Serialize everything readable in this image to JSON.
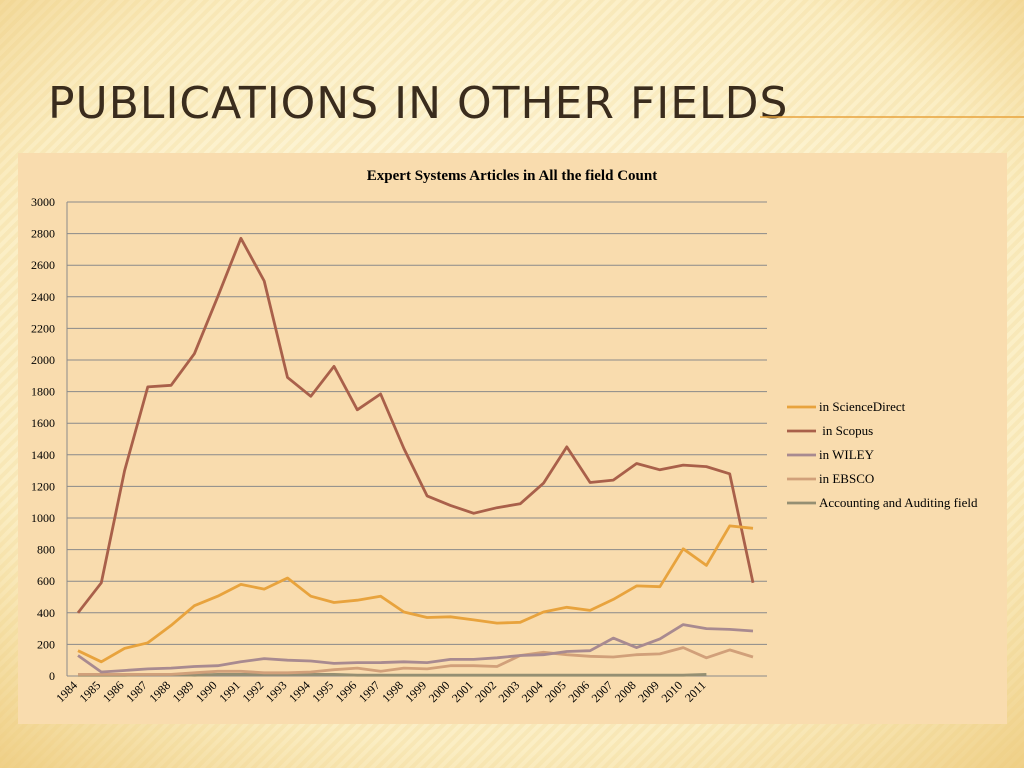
{
  "slide_title": "Publications in other fields",
  "chart_data": {
    "type": "line",
    "title": "Expert Systems Articles in All the field Count",
    "categories": [
      "1984",
      "1985",
      "1986",
      "1987",
      "1988",
      "1989",
      "1990",
      "1991",
      "1992",
      "1993",
      "1994",
      "1995",
      "1996",
      "1997",
      "1998",
      "1999",
      "2000",
      "2001",
      "2002",
      "2003",
      "2004",
      "2005",
      "2006",
      "2007",
      "2008",
      "2009",
      "2010",
      "2011",
      null,
      null
    ],
    "series": [
      {
        "name": "in ScienceDirect",
        "color": "#e8a33d",
        "values": [
          160,
          90,
          175,
          210,
          320,
          445,
          505,
          580,
          550,
          620,
          505,
          465,
          480,
          505,
          405,
          370,
          375,
          355,
          335,
          340,
          405,
          435,
          415,
          485,
          570,
          565,
          805,
          700,
          950,
          935
        ]
      },
      {
        "name": " in Scopus",
        "color": "#a9604a",
        "values": [
          400,
          590,
          1300,
          1830,
          1840,
          2040,
          2400,
          2770,
          2500,
          1890,
          1770,
          1960,
          1685,
          1785,
          1440,
          1140,
          1080,
          1030,
          1065,
          1090,
          1220,
          1450,
          1225,
          1240,
          1345,
          1305,
          1335,
          1325,
          1280,
          590
        ]
      },
      {
        "name": "in WILEY",
        "color": "#a88a90",
        "values": [
          130,
          25,
          35,
          45,
          50,
          60,
          65,
          90,
          110,
          100,
          95,
          80,
          85,
          85,
          90,
          85,
          105,
          105,
          115,
          130,
          135,
          155,
          160,
          240,
          180,
          235,
          325,
          300,
          295,
          285
        ]
      },
      {
        "name": "in EBSCO",
        "color": "#d1a07a",
        "values": [
          10,
          10,
          10,
          10,
          10,
          20,
          30,
          30,
          20,
          20,
          25,
          40,
          50,
          30,
          50,
          45,
          65,
          65,
          60,
          130,
          150,
          135,
          125,
          120,
          135,
          140,
          180,
          115,
          165,
          120
        ]
      },
      {
        "name": "Accounting and Auditing field",
        "color": "#958f72",
        "values": [
          5,
          5,
          5,
          10,
          10,
          5,
          10,
          10,
          10,
          10,
          10,
          10,
          5,
          5,
          5,
          5,
          5,
          5,
          5,
          5,
          5,
          5,
          5,
          5,
          5,
          5,
          5,
          10,
          null,
          null
        ]
      }
    ],
    "ylim": [
      0,
      3000
    ],
    "yticks": [
      0,
      200,
      400,
      600,
      800,
      1000,
      1200,
      1400,
      1600,
      1800,
      2000,
      2200,
      2400,
      2600,
      2800,
      3000
    ],
    "grid": true,
    "legend": "right"
  }
}
